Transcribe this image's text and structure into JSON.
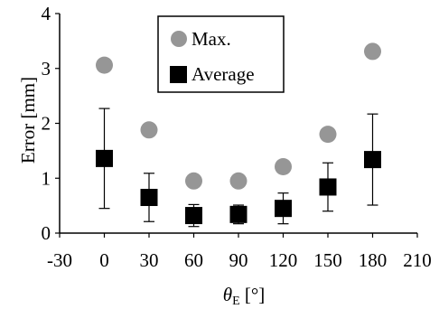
{
  "chart_data": {
    "type": "scatter",
    "xlabel": {
      "symbol": "θ",
      "subscript": "E",
      "unit": " [°]"
    },
    "ylabel": "Error [mm]",
    "xlim": [
      -30,
      210
    ],
    "ylim": [
      0,
      4
    ],
    "xticks": [
      -30,
      0,
      30,
      60,
      90,
      120,
      150,
      180,
      210
    ],
    "yticks": [
      0,
      1,
      2,
      3,
      4
    ],
    "grid": false,
    "legend": "top-center",
    "series": [
      {
        "name": "Max.",
        "marker": "circle",
        "color": "#969696",
        "x": [
          0,
          30,
          60,
          90,
          120,
          150,
          180
        ],
        "y": [
          3.06,
          1.88,
          0.95,
          0.95,
          1.21,
          1.8,
          3.31
        ]
      },
      {
        "name": "Average",
        "marker": "square",
        "color": "#000000",
        "x": [
          0,
          30,
          60,
          90,
          120,
          150,
          180
        ],
        "y": [
          1.36,
          0.65,
          0.32,
          0.34,
          0.45,
          0.84,
          1.34
        ],
        "error": [
          0.91,
          0.44,
          0.2,
          0.17,
          0.28,
          0.44,
          0.83
        ]
      }
    ]
  }
}
